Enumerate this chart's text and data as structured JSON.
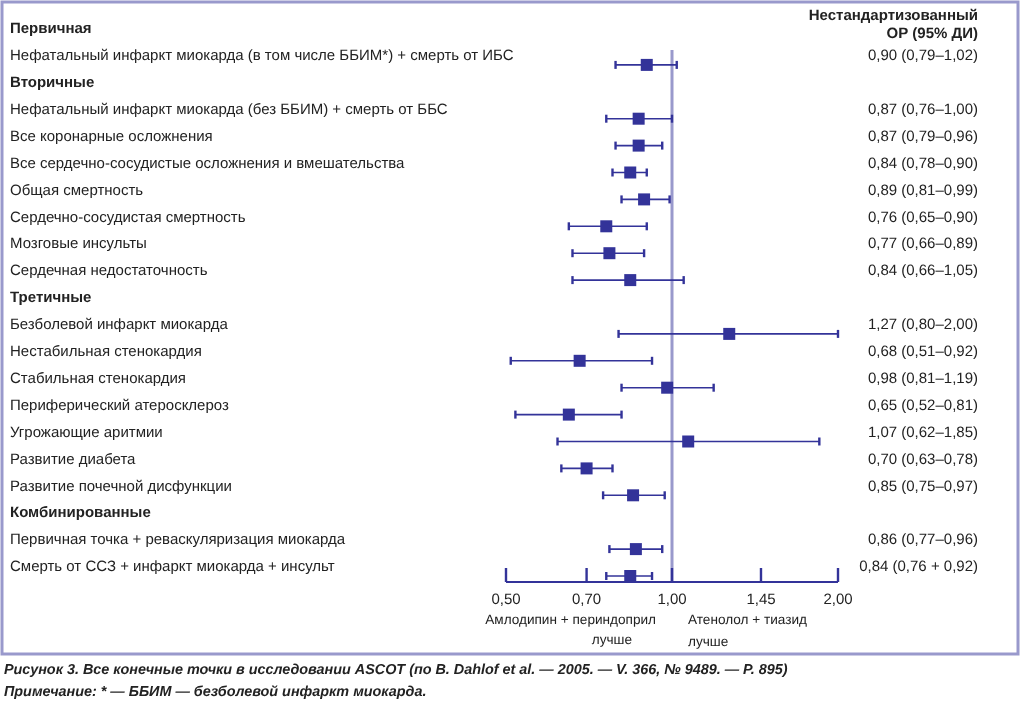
{
  "chart_data": {
    "type": "scatter",
    "orientation": "horizontal",
    "log": "x",
    "marker": "square",
    "color": "#333399",
    "categories": [
      "Первичная",
      "Нефатальный инфаркт миокарда (в том числе ББИМ*) + смерть от ИБС",
      "Вторичные",
      "Нефатальный инфаркт миокарда (без ББИМ) + смерть от ББС",
      "Все коронарные осложнения",
      "Все сердечно-сосудистые осложнения и вмешательства",
      "Общая смертность",
      "Сердечно-сосудистая смертность",
      "Мозговые инсульты",
      "Сердечная недостаточность",
      "Третичные",
      "Безболевой инфаркт миокарда",
      "Нестабильная стенокардия",
      "Стабильная стенокардия",
      "Периферический атеросклероз",
      "Угрожающие аритмии",
      "Развитие диабета",
      "Развитие почечной дисфункции",
      "Комбинированные",
      "Первичная точка + реваскуляризация миокарда",
      "Смерть от ССЗ + инфаркт миокарда + инсульт"
    ],
    "values": [
      null,
      0.9,
      null,
      0.87,
      0.87,
      0.84,
      0.89,
      0.76,
      0.77,
      0.84,
      null,
      1.27,
      0.68,
      0.98,
      0.65,
      1.07,
      0.7,
      0.85,
      null,
      0.86,
      0.84
    ],
    "errors": [
      null,
      [
        0.79,
        1.02
      ],
      null,
      [
        0.76,
        1.0
      ],
      [
        0.79,
        0.96
      ],
      [
        0.78,
        0.9
      ],
      [
        0.81,
        0.99
      ],
      [
        0.65,
        0.9
      ],
      [
        0.66,
        0.89
      ],
      [
        0.66,
        1.05
      ],
      null,
      [
        0.8,
        2.0
      ],
      [
        0.51,
        0.92
      ],
      [
        0.81,
        1.19
      ],
      [
        0.52,
        0.81
      ],
      [
        0.62,
        1.85
      ],
      [
        0.63,
        0.78
      ],
      [
        0.75,
        0.97
      ],
      null,
      [
        0.77,
        0.96
      ],
      [
        0.76,
        0.92
      ]
    ],
    "value_labels": [
      null,
      "0,90 (0,79–1,02)",
      null,
      "0,87 (0,76–1,00)",
      "0,87 (0,79–0,96)",
      "0,84 (0,78–0,90)",
      "0,89 (0,81–0,99)",
      "0,76 (0,65–0,90)",
      "0,77 (0,66–0,89)",
      "0,84 (0,66–1,05)",
      null,
      "1,27 (0,80–2,00)",
      "0,68 (0,51–0,92)",
      "0,98 (0,81–1,19)",
      "0,65 (0,52–0,81)",
      "1,07 (0,62–1,85)",
      "0,70 (0,63–0,78)",
      "0,85 (0,75–0,97)",
      null,
      "0,86 (0,77–0,96)",
      "0,84 (0,76 + 0,92)"
    ],
    "xlim": [
      0.5,
      2.0
    ],
    "xticks": [
      {
        "value": 0.5,
        "label": "0,50"
      },
      {
        "value": 0.7,
        "label": "0,70"
      },
      {
        "value": 1.0,
        "label": "1,00"
      },
      {
        "value": 1.45,
        "label": "1,45"
      },
      {
        "value": 2.0,
        "label": "2,00"
      }
    ],
    "ref_lines": [
      {
        "axis": "x",
        "value": 1.0,
        "color": "#9999cc"
      }
    ],
    "annotations": [
      "Нестандартизованный ОР (95% ДИ)",
      "Амлодипин + периндоприл лучше",
      "Атенолол + тиазид лучше",
      "Рисунок 3. Все конечные точки в исследовании ASCOT (по B. Dahlof et al. — 2005. — V. 366, № 9489. — P. 895)",
      "Примечание: * — ББИМ — безболевой инфаркт миокарда."
    ]
  }
}
